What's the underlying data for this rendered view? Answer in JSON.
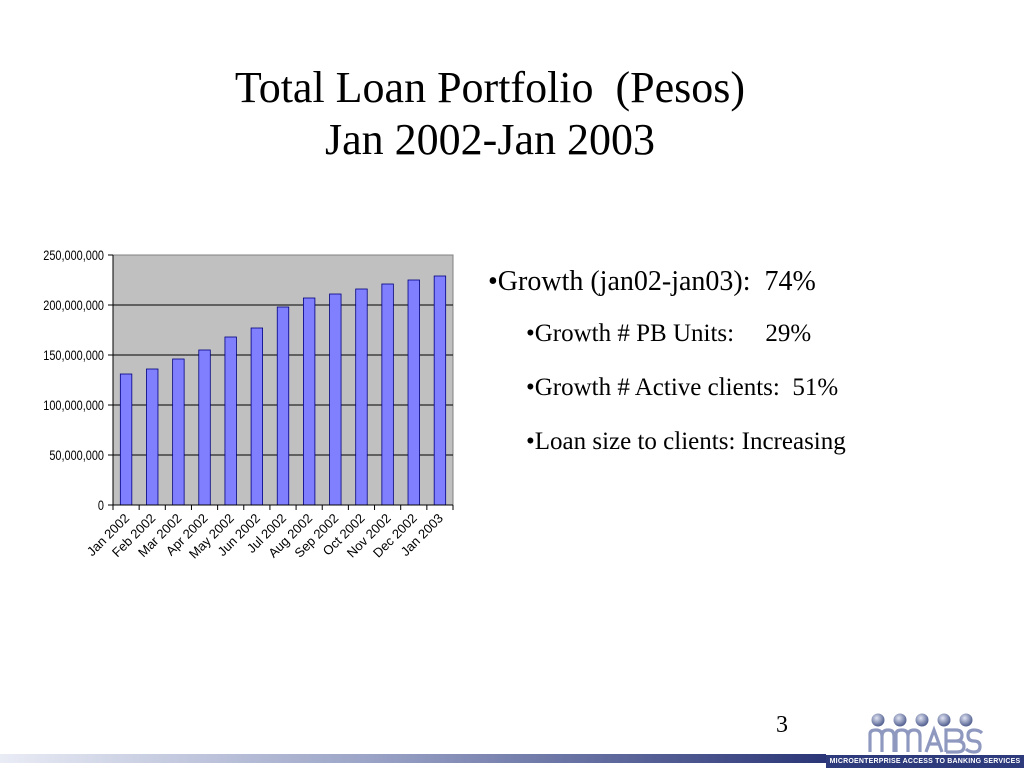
{
  "slide": {
    "title_line1": "Total Loan Portfolio  (Pesos)",
    "title_line2": "Jan 2002-Jan 2003",
    "bullets": [
      "•Growth (jan02-jan03):  74%",
      "•Growth # PB Units:     29%",
      "•Growth # Active clients:  51%",
      "•Loan size to clients: Increasing"
    ],
    "page_number": "3",
    "logo_text": "MICROENTERPRISE ACCESS TO BANKING SERVICES"
  },
  "chart_data": {
    "type": "bar",
    "title": "",
    "xlabel": "",
    "ylabel": "",
    "categories": [
      "Jan 2002",
      "Feb 2002",
      "Mar 2002",
      "Apr 2002",
      "May 2002",
      "Jun 2002",
      "Jul 2002",
      "Aug 2002",
      "Sep 2002",
      "Oct 2002",
      "Nov 2002",
      "Dec 2002",
      "Jan 2003"
    ],
    "values": [
      131000000,
      136000000,
      146000000,
      155000000,
      168000000,
      177000000,
      198000000,
      207000000,
      211000000,
      216000000,
      221000000,
      225000000,
      229000000
    ],
    "ylim": [
      0,
      250000000
    ],
    "yticks": [
      "0",
      "50,000,000",
      "100,000,000",
      "150,000,000",
      "200,000,000",
      "250,000,000"
    ],
    "grid": true,
    "legend": "none",
    "colors": {
      "bar_fill": "#8080ff",
      "plot_bg": "#c0c0c0"
    }
  }
}
